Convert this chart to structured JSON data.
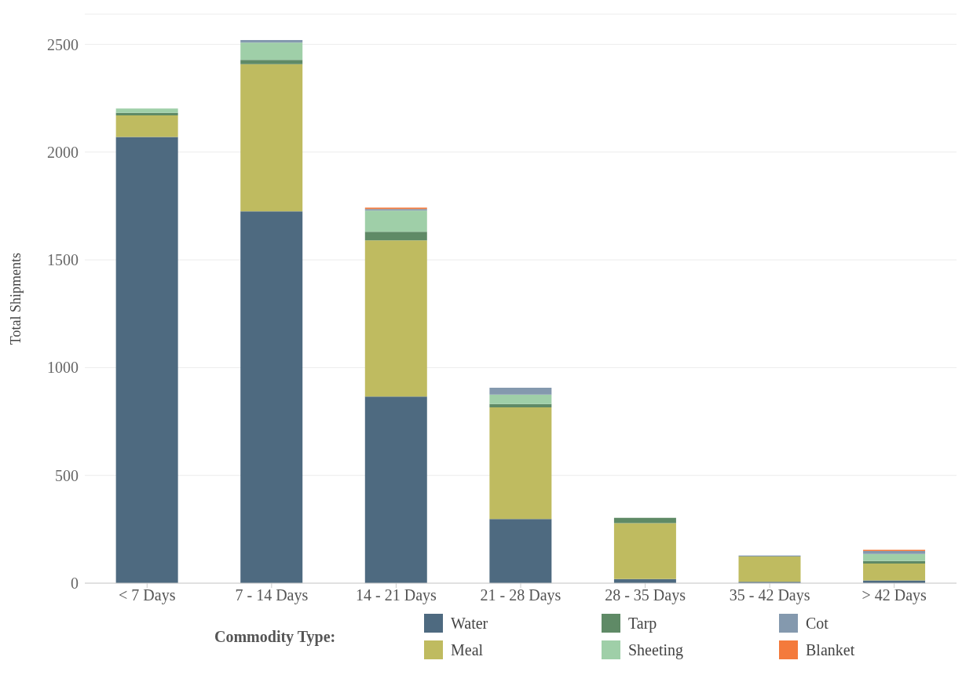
{
  "chart_data": {
    "type": "bar",
    "stacked": true,
    "ylabel": "Total Shipments",
    "legend_title": "Commodity Type:",
    "legend": "bottom",
    "grid": "y",
    "categories": [
      "< 7 Days",
      "7 - 14 Days",
      "14 - 21 Days",
      "21 - 28 Days",
      "28 - 35 Days",
      "35 - 42 Days",
      "> 42 Days"
    ],
    "ylim": [
      0,
      2640
    ],
    "yticks": [
      0,
      500,
      1000,
      1500,
      2000,
      2500
    ],
    "series": [
      {
        "name": "Water",
        "color": "#4e6a80",
        "values": [
          2070,
          1725,
          866,
          298,
          19,
          6,
          13
        ]
      },
      {
        "name": "Meal",
        "color": "#bfbb60",
        "values": [
          100,
          683,
          724,
          518,
          260,
          118,
          78
        ]
      },
      {
        "name": "Tarp",
        "color": "#5f8a66",
        "values": [
          12,
          20,
          40,
          15,
          24,
          null,
          12
        ]
      },
      {
        "name": "Sheeting",
        "color": "#9fcfa8",
        "values": [
          20,
          80,
          99,
          44,
          null,
          null,
          33
        ]
      },
      {
        "name": "Cot",
        "color": "#8499ae",
        "values": [
          null,
          12,
          7,
          32,
          null,
          4,
          13
        ]
      },
      {
        "name": "Blanket",
        "color": "#f47a3c",
        "values": [
          null,
          null,
          6,
          null,
          null,
          null,
          6
        ]
      }
    ]
  }
}
